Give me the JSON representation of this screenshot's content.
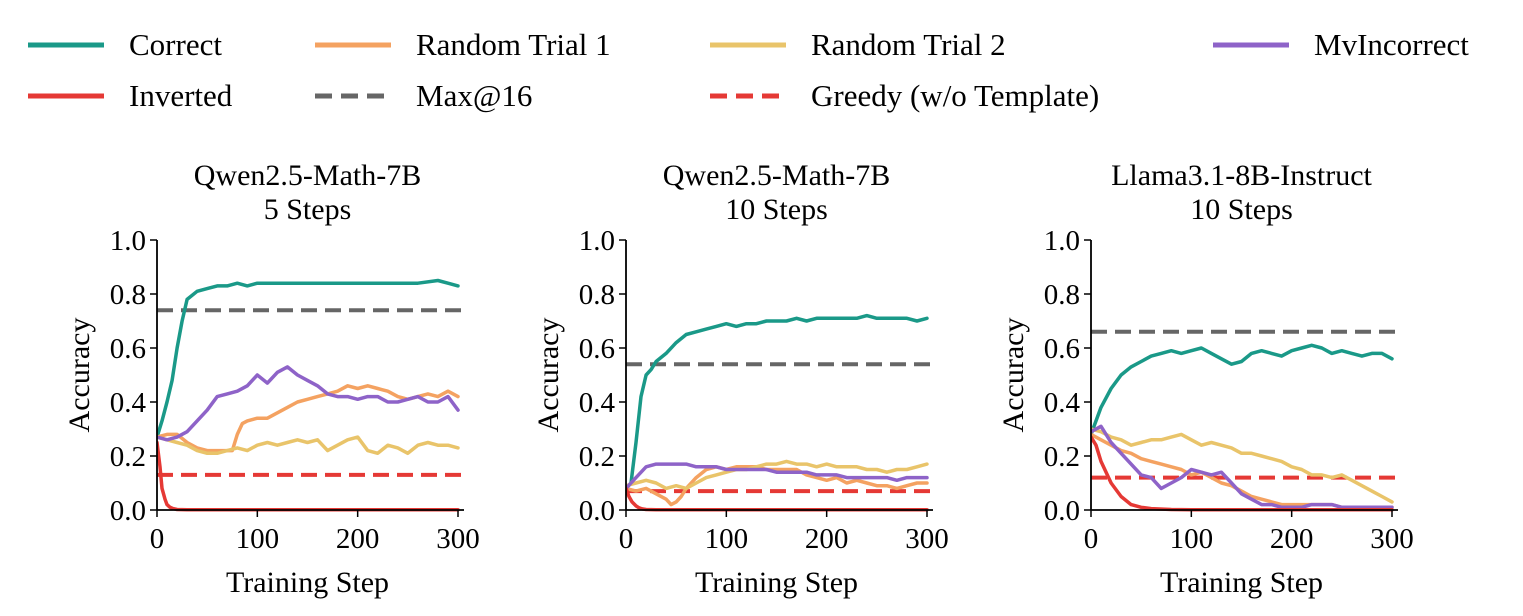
{
  "legend": [
    {
      "label": "Correct",
      "color": "#1a9988",
      "style": "solid"
    },
    {
      "label": "Random Trial 1",
      "color": "#f4a261",
      "style": "solid"
    },
    {
      "label": "Random Trial 2",
      "color": "#e9c46a",
      "style": "solid"
    },
    {
      "label": "MvIncorrect",
      "color": "#8e63c8",
      "style": "solid"
    },
    {
      "label": "Inverted",
      "color": "#e53935",
      "style": "solid"
    },
    {
      "label": "Max@16",
      "color": "#666666",
      "style": "dashed"
    },
    {
      "label": "Greedy (w/o Template)",
      "color": "#e53935",
      "style": "dashed"
    }
  ],
  "chart_data": [
    {
      "type": "line",
      "title": [
        "Qwen2.5-Math-7B",
        "5 Steps"
      ],
      "xlabel": "Training Step",
      "ylabel": "Accuracy",
      "xlim": [
        0,
        300
      ],
      "ylim": [
        0,
        1.0
      ],
      "xticks": [
        "0",
        "100",
        "200",
        "300"
      ],
      "yticks": [
        "0.0",
        "0.2",
        "0.4",
        "0.6",
        "0.8",
        "1.0"
      ],
      "hlines": [
        {
          "name": "Max@16",
          "y": 0.74,
          "color": "#666666"
        },
        {
          "name": "Greedy (w/o Template)",
          "y": 0.13,
          "color": "#e53935"
        }
      ],
      "series": [
        {
          "name": "Correct",
          "color": "#1a9988",
          "x": [
            0,
            5,
            10,
            15,
            20,
            25,
            30,
            40,
            50,
            60,
            70,
            80,
            90,
            100,
            120,
            140,
            160,
            180,
            200,
            220,
            240,
            260,
            280,
            290,
            300
          ],
          "y": [
            0.27,
            0.33,
            0.4,
            0.48,
            0.6,
            0.7,
            0.78,
            0.81,
            0.82,
            0.83,
            0.83,
            0.84,
            0.83,
            0.84,
            0.84,
            0.84,
            0.84,
            0.84,
            0.84,
            0.84,
            0.84,
            0.84,
            0.85,
            0.84,
            0.83
          ]
        },
        {
          "name": "Random Trial 1",
          "color": "#f4a261",
          "x": [
            0,
            10,
            20,
            30,
            40,
            50,
            60,
            70,
            75,
            80,
            85,
            90,
            100,
            110,
            120,
            130,
            140,
            150,
            160,
            170,
            180,
            190,
            200,
            210,
            220,
            230,
            240,
            250,
            260,
            270,
            280,
            290,
            300
          ],
          "y": [
            0.27,
            0.28,
            0.28,
            0.25,
            0.23,
            0.22,
            0.22,
            0.22,
            0.22,
            0.28,
            0.32,
            0.33,
            0.34,
            0.34,
            0.36,
            0.38,
            0.4,
            0.41,
            0.42,
            0.43,
            0.44,
            0.46,
            0.45,
            0.46,
            0.45,
            0.44,
            0.42,
            0.41,
            0.42,
            0.43,
            0.42,
            0.44,
            0.42
          ]
        },
        {
          "name": "Random Trial 2",
          "color": "#e9c46a",
          "x": [
            0,
            10,
            20,
            30,
            40,
            50,
            60,
            70,
            80,
            90,
            100,
            110,
            120,
            130,
            140,
            150,
            160,
            170,
            180,
            190,
            200,
            210,
            220,
            230,
            240,
            250,
            260,
            270,
            280,
            290,
            300
          ],
          "y": [
            0.27,
            0.26,
            0.25,
            0.24,
            0.22,
            0.21,
            0.21,
            0.22,
            0.23,
            0.22,
            0.24,
            0.25,
            0.24,
            0.25,
            0.26,
            0.25,
            0.26,
            0.22,
            0.24,
            0.26,
            0.27,
            0.22,
            0.21,
            0.24,
            0.23,
            0.21,
            0.24,
            0.25,
            0.24,
            0.24,
            0.23
          ]
        },
        {
          "name": "MvIncorrect",
          "color": "#8e63c8",
          "x": [
            0,
            10,
            20,
            30,
            40,
            50,
            60,
            70,
            80,
            90,
            100,
            110,
            120,
            130,
            140,
            150,
            160,
            170,
            180,
            190,
            200,
            210,
            220,
            230,
            240,
            250,
            260,
            270,
            280,
            290,
            300
          ],
          "y": [
            0.27,
            0.26,
            0.27,
            0.29,
            0.33,
            0.37,
            0.42,
            0.43,
            0.44,
            0.46,
            0.5,
            0.47,
            0.51,
            0.53,
            0.5,
            0.48,
            0.46,
            0.43,
            0.42,
            0.42,
            0.41,
            0.42,
            0.42,
            0.4,
            0.4,
            0.41,
            0.42,
            0.4,
            0.4,
            0.42,
            0.37
          ]
        },
        {
          "name": "Inverted",
          "color": "#e53935",
          "x": [
            0,
            3,
            5,
            8,
            10,
            13,
            16,
            20,
            30,
            50,
            100,
            150,
            200,
            250,
            300
          ],
          "y": [
            0.25,
            0.16,
            0.08,
            0.04,
            0.02,
            0.01,
            0.005,
            0.002,
            0.001,
            0.001,
            0.001,
            0.001,
            0.001,
            0.001,
            0.001
          ]
        }
      ]
    },
    {
      "type": "line",
      "title": [
        "Qwen2.5-Math-7B",
        "10 Steps"
      ],
      "xlabel": "Training Step",
      "ylabel": "Accuracy",
      "xlim": [
        0,
        300
      ],
      "ylim": [
        0,
        1.0
      ],
      "xticks": [
        "0",
        "100",
        "200",
        "300"
      ],
      "yticks": [
        "0.0",
        "0.2",
        "0.4",
        "0.6",
        "0.8",
        "1.0"
      ],
      "hlines": [
        {
          "name": "Max@16",
          "y": 0.54,
          "color": "#666666"
        },
        {
          "name": "Greedy (w/o Template)",
          "y": 0.07,
          "color": "#e53935"
        }
      ],
      "series": [
        {
          "name": "Correct",
          "color": "#1a9988",
          "x": [
            0,
            5,
            10,
            15,
            20,
            25,
            30,
            40,
            50,
            60,
            70,
            80,
            90,
            100,
            110,
            120,
            130,
            140,
            150,
            160,
            170,
            180,
            190,
            200,
            210,
            220,
            230,
            240,
            250,
            260,
            270,
            280,
            290,
            300
          ],
          "y": [
            0.08,
            0.1,
            0.25,
            0.42,
            0.5,
            0.52,
            0.55,
            0.58,
            0.62,
            0.65,
            0.66,
            0.67,
            0.68,
            0.69,
            0.68,
            0.69,
            0.69,
            0.7,
            0.7,
            0.7,
            0.71,
            0.7,
            0.71,
            0.71,
            0.71,
            0.71,
            0.71,
            0.72,
            0.71,
            0.71,
            0.71,
            0.71,
            0.7,
            0.71
          ]
        },
        {
          "name": "Random Trial 1",
          "color": "#f4a261",
          "x": [
            0,
            10,
            20,
            30,
            40,
            45,
            50,
            55,
            60,
            70,
            80,
            90,
            100,
            110,
            120,
            130,
            140,
            150,
            160,
            170,
            180,
            190,
            200,
            210,
            220,
            230,
            240,
            250,
            260,
            270,
            280,
            290,
            300
          ],
          "y": [
            0.08,
            0.07,
            0.08,
            0.06,
            0.04,
            0.02,
            0.03,
            0.05,
            0.08,
            0.12,
            0.15,
            0.16,
            0.15,
            0.16,
            0.16,
            0.16,
            0.15,
            0.15,
            0.15,
            0.15,
            0.13,
            0.12,
            0.11,
            0.12,
            0.1,
            0.11,
            0.1,
            0.09,
            0.09,
            0.08,
            0.09,
            0.1,
            0.1
          ]
        },
        {
          "name": "Random Trial 2",
          "color": "#e9c46a",
          "x": [
            0,
            10,
            20,
            30,
            40,
            50,
            60,
            70,
            80,
            90,
            100,
            110,
            120,
            130,
            140,
            150,
            160,
            170,
            180,
            190,
            200,
            210,
            220,
            230,
            240,
            250,
            260,
            270,
            280,
            290,
            300
          ],
          "y": [
            0.09,
            0.1,
            0.11,
            0.1,
            0.08,
            0.09,
            0.08,
            0.1,
            0.12,
            0.13,
            0.14,
            0.15,
            0.15,
            0.16,
            0.17,
            0.17,
            0.18,
            0.17,
            0.17,
            0.16,
            0.17,
            0.16,
            0.16,
            0.16,
            0.15,
            0.15,
            0.14,
            0.15,
            0.15,
            0.16,
            0.17
          ]
        },
        {
          "name": "MvIncorrect",
          "color": "#8e63c8",
          "x": [
            0,
            10,
            20,
            30,
            40,
            50,
            60,
            70,
            80,
            90,
            100,
            110,
            120,
            130,
            140,
            150,
            160,
            170,
            180,
            190,
            200,
            210,
            220,
            230,
            240,
            250,
            260,
            270,
            280,
            290,
            300
          ],
          "y": [
            0.08,
            0.12,
            0.16,
            0.17,
            0.17,
            0.17,
            0.17,
            0.16,
            0.16,
            0.16,
            0.15,
            0.15,
            0.15,
            0.15,
            0.15,
            0.14,
            0.14,
            0.14,
            0.14,
            0.13,
            0.13,
            0.13,
            0.12,
            0.12,
            0.12,
            0.12,
            0.12,
            0.11,
            0.12,
            0.12,
            0.12
          ]
        },
        {
          "name": "Inverted",
          "color": "#e53935",
          "x": [
            0,
            3,
            6,
            10,
            13,
            16,
            20,
            30,
            50,
            100,
            150,
            200,
            250,
            300
          ],
          "y": [
            0.08,
            0.05,
            0.03,
            0.015,
            0.008,
            0.004,
            0.002,
            0.001,
            0.001,
            0.001,
            0.001,
            0.001,
            0.001,
            0.001
          ]
        }
      ]
    },
    {
      "type": "line",
      "title": [
        "Llama3.1-8B-Instruct",
        "10 Steps"
      ],
      "xlabel": "Training Step",
      "ylabel": "Accuracy",
      "xlim": [
        0,
        300
      ],
      "ylim": [
        0,
        1.0
      ],
      "xticks": [
        "0",
        "100",
        "200",
        "300"
      ],
      "yticks": [
        "0.0",
        "0.2",
        "0.4",
        "0.6",
        "0.8",
        "1.0"
      ],
      "hlines": [
        {
          "name": "Max@16",
          "y": 0.66,
          "color": "#666666"
        },
        {
          "name": "Greedy (w/o Template)",
          "y": 0.12,
          "color": "#e53935"
        }
      ],
      "series": [
        {
          "name": "Correct",
          "color": "#1a9988",
          "x": [
            0,
            10,
            20,
            30,
            40,
            50,
            60,
            70,
            80,
            90,
            100,
            110,
            120,
            130,
            140,
            150,
            160,
            170,
            180,
            190,
            200,
            210,
            220,
            230,
            240,
            250,
            260,
            270,
            280,
            290,
            300
          ],
          "y": [
            0.28,
            0.38,
            0.45,
            0.5,
            0.53,
            0.55,
            0.57,
            0.58,
            0.59,
            0.58,
            0.59,
            0.6,
            0.58,
            0.56,
            0.54,
            0.55,
            0.58,
            0.59,
            0.58,
            0.57,
            0.59,
            0.6,
            0.61,
            0.6,
            0.58,
            0.59,
            0.58,
            0.57,
            0.58,
            0.58,
            0.56
          ]
        },
        {
          "name": "Random Trial 1",
          "color": "#f4a261",
          "x": [
            0,
            10,
            20,
            30,
            40,
            50,
            60,
            70,
            80,
            90,
            100,
            110,
            120,
            130,
            140,
            150,
            160,
            170,
            180,
            190,
            200,
            210,
            220,
            230,
            240,
            250,
            260,
            270,
            280,
            290,
            300
          ],
          "y": [
            0.28,
            0.26,
            0.24,
            0.22,
            0.21,
            0.19,
            0.18,
            0.17,
            0.16,
            0.15,
            0.13,
            0.14,
            0.12,
            0.1,
            0.09,
            0.07,
            0.05,
            0.04,
            0.03,
            0.02,
            0.02,
            0.02,
            0.02,
            0.02,
            0.02,
            0.01,
            0.01,
            0.01,
            0.01,
            0.01,
            0.01
          ]
        },
        {
          "name": "Random Trial 2",
          "color": "#e9c46a",
          "x": [
            0,
            10,
            20,
            30,
            40,
            50,
            60,
            70,
            80,
            90,
            100,
            110,
            120,
            130,
            140,
            150,
            160,
            170,
            180,
            190,
            200,
            210,
            220,
            230,
            240,
            250,
            260,
            270,
            280,
            290,
            300
          ],
          "y": [
            0.3,
            0.29,
            0.27,
            0.26,
            0.24,
            0.25,
            0.26,
            0.26,
            0.27,
            0.28,
            0.26,
            0.24,
            0.25,
            0.24,
            0.23,
            0.21,
            0.21,
            0.2,
            0.19,
            0.18,
            0.16,
            0.15,
            0.13,
            0.13,
            0.12,
            0.13,
            0.11,
            0.09,
            0.07,
            0.05,
            0.03
          ]
        },
        {
          "name": "MvIncorrect",
          "color": "#8e63c8",
          "x": [
            0,
            10,
            20,
            30,
            40,
            50,
            60,
            70,
            80,
            90,
            100,
            110,
            120,
            130,
            140,
            150,
            160,
            170,
            180,
            190,
            200,
            210,
            220,
            230,
            240,
            250,
            260,
            270,
            280,
            290,
            300
          ],
          "y": [
            0.29,
            0.31,
            0.25,
            0.21,
            0.17,
            0.13,
            0.12,
            0.08,
            0.1,
            0.12,
            0.15,
            0.14,
            0.13,
            0.14,
            0.1,
            0.06,
            0.04,
            0.02,
            0.02,
            0.01,
            0.01,
            0.01,
            0.02,
            0.02,
            0.02,
            0.01,
            0.01,
            0.01,
            0.01,
            0.01,
            0.01
          ]
        },
        {
          "name": "Inverted",
          "color": "#e53935",
          "x": [
            0,
            5,
            10,
            20,
            30,
            40,
            50,
            60,
            80,
            100,
            150,
            200,
            250,
            300
          ],
          "y": [
            0.27,
            0.24,
            0.18,
            0.1,
            0.05,
            0.02,
            0.01,
            0.005,
            0.002,
            0.001,
            0.001,
            0.001,
            0.001,
            0.001
          ]
        }
      ]
    }
  ]
}
